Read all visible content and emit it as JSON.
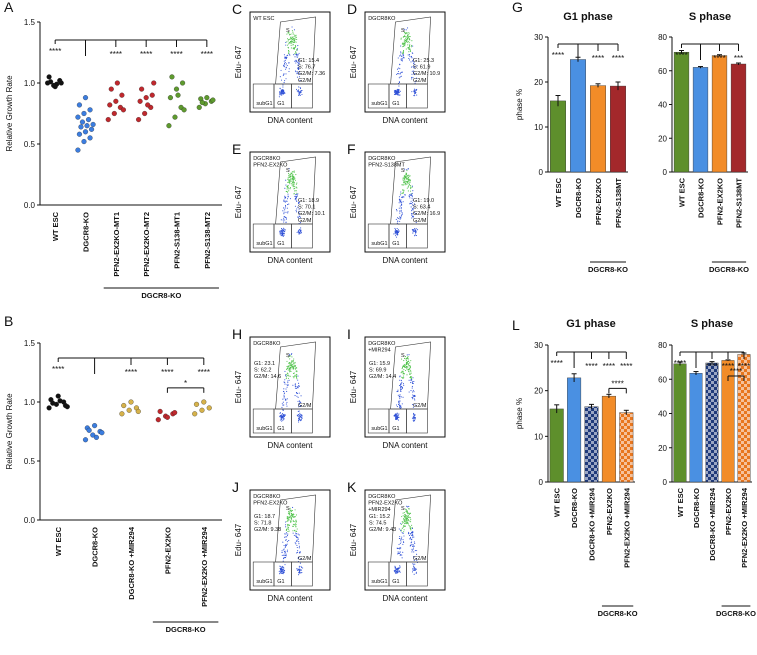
{
  "chart_data": [
    {
      "type": "dot",
      "panel": "A",
      "ylabel": "Relative Growth Rate",
      "categories": [
        "WT ESC",
        "DGCR8-KO",
        "PFN2-EX2KO-MT1",
        "PFN2-EX2KO-MT2",
        "PFN2-S138-MT1",
        "PFN2-S138-MT2"
      ],
      "colors": [
        "#111111",
        "#3b7de0",
        "#c0282d",
        "#c0282d",
        "#5e9a2e",
        "#5e9a2e"
      ],
      "values": [
        [
          1.0,
          0.98,
          1.02,
          1.05,
          0.97,
          1.0,
          1.01,
          0.99
        ],
        [
          0.45,
          0.52,
          0.55,
          0.58,
          0.6,
          0.62,
          0.64,
          0.65,
          0.66,
          0.68,
          0.7,
          0.72,
          0.75,
          0.78,
          0.82,
          0.88
        ],
        [
          0.7,
          0.75,
          0.8,
          0.82,
          0.85,
          0.9,
          0.95,
          1.0,
          0.78
        ],
        [
          0.7,
          0.75,
          0.8,
          0.85,
          0.88,
          0.9,
          0.95,
          0.82,
          1.0
        ],
        [
          0.65,
          0.72,
          0.8,
          0.88,
          0.95,
          1.0,
          1.05,
          0.9,
          0.78
        ],
        [
          0.8,
          0.83,
          0.85,
          0.87,
          0.88,
          0.86,
          0.84
        ]
      ],
      "significance": [
        "****",
        null,
        "****",
        "****",
        "****",
        "****"
      ],
      "group_label": "DGCR8-KO",
      "ylim": [
        0,
        1.5
      ],
      "yticks": [
        {
          "value": 0,
          "label": "0.0"
        },
        0.5,
        {
          "value": 1,
          "label": "1.0"
        },
        1.5
      ]
    },
    {
      "type": "dot",
      "panel": "B",
      "ylabel": "Relative Growth Rate",
      "categories": [
        "WT ESC",
        "DGCR8-KO",
        "DGCR8-KO +MIR294",
        "PFN2-EX2KO",
        "PFN2-EX2KO +MIR294"
      ],
      "colors": [
        "#111111",
        "#3b7de0",
        "#d6b24a",
        "#c0282d",
        "#d6b24a"
      ],
      "values": [
        [
          0.95,
          0.98,
          1.0,
          1.02,
          1.05,
          0.97,
          0.99,
          1.01,
          0.96
        ],
        [
          0.68,
          0.72,
          0.75,
          0.78,
          0.8,
          0.74,
          0.76,
          0.7
        ],
        [
          0.9,
          0.93,
          0.95,
          0.97,
          1.0,
          0.92
        ],
        [
          0.85,
          0.88,
          0.9,
          0.92,
          0.87,
          0.91
        ],
        [
          0.9,
          0.93,
          0.95,
          0.98,
          1.0
        ]
      ],
      "significance": [
        "****",
        null,
        "****",
        "****",
        "****"
      ],
      "annotations": [
        "*"
      ],
      "group_label": "DGCR8-KO",
      "ylim": [
        0,
        1.5
      ],
      "yticks": [
        {
          "value": 0,
          "label": "0.0"
        },
        0.5,
        {
          "value": 1,
          "label": "1.0"
        },
        1.5
      ]
    },
    {
      "type": "bar",
      "panel": "G",
      "title": "G1 phase",
      "ylabel": "phase %",
      "categories": [
        "WT ESC",
        "DGCR8-KO",
        "PFN2-EX2KO",
        "PFN2-S138MT"
      ],
      "colors": [
        "#5e8f2c",
        "#4a90e2",
        "#f28c28",
        "#a3282b"
      ],
      "values": [
        15.8,
        25,
        19.2,
        19.1
      ],
      "errors": [
        1.2,
        0.5,
        0.4,
        0.9
      ],
      "significance": [
        "****",
        null,
        "****",
        "****"
      ],
      "group_label": "DGCR8-KO",
      "ylim": [
        0,
        30
      ],
      "yticks": [
        0,
        10,
        20,
        30
      ]
    },
    {
      "type": "bar",
      "title": "S phase",
      "categories": [
        "WT ESC",
        "DGCR8-KO",
        "PFN2-EX2KO",
        "PFN2-S138MT"
      ],
      "colors": [
        "#5e8f2c",
        "#4a90e2",
        "#f28c28",
        "#a3282b"
      ],
      "values": [
        71,
        62,
        69,
        64
      ],
      "errors": [
        1,
        0.5,
        0.5,
        0.6
      ],
      "significance": [
        "****",
        null,
        "****",
        "***"
      ],
      "group_label": "DGCR8-KO",
      "ylim": [
        0,
        80
      ],
      "yticks": [
        0,
        20,
        40,
        60,
        80
      ]
    },
    {
      "type": "bar",
      "panel": "L",
      "title": "G1 phase",
      "ylabel": "phase %",
      "categories": [
        "WT ESC",
        "DGCR8-KO",
        "DGCR8-KO +MIR294",
        "PFN2-EX2KO",
        "PFN2-EX2KO +MIR294"
      ],
      "colors": [
        "#5e8f2c",
        "#4a90e2",
        "#1f3a7a",
        "#f28c28",
        "#e8761e"
      ],
      "patterns": [
        null,
        null,
        "checker",
        null,
        "checker"
      ],
      "values": [
        16,
        22.8,
        16.5,
        18.8,
        15.2
      ],
      "errors": [
        0.9,
        0.9,
        0.5,
        0.4,
        0.5
      ],
      "significance": [
        "****",
        null,
        "****",
        "****",
        "****"
      ],
      "annotations": [
        "****"
      ],
      "group_label": "DGCR8-KO",
      "ylim": [
        0,
        30
      ],
      "yticks": [
        0,
        10,
        20,
        30
      ]
    },
    {
      "type": "bar",
      "title": "S phase",
      "categories": [
        "WT ESC",
        "DGCR8-KO",
        "DGCR8-KO +MIR294",
        "PFN2-EX2KO",
        "PFN2-EX2KO +MIR294"
      ],
      "colors": [
        "#5e8f2c",
        "#4a90e2",
        "#1f3a7a",
        "#f28c28",
        "#e8761e"
      ],
      "patterns": [
        null,
        null,
        "checker",
        null,
        "checker"
      ],
      "values": [
        69,
        63.5,
        69.5,
        71,
        74.5
      ],
      "errors": [
        1,
        1,
        0.8,
        0.3,
        0.8
      ],
      "significance": [
        "****",
        null,
        "****",
        "****",
        "****"
      ],
      "annotations": [
        "****"
      ],
      "group_label": "DGCR8-KO",
      "ylim": [
        0,
        80
      ],
      "yticks": [
        0,
        20,
        40,
        60,
        80
      ]
    }
  ],
  "flow_axes": {
    "x": "DNA content",
    "y": "Edu- 647",
    "gates": [
      "S",
      "G2/M",
      "G1",
      "subG1"
    ]
  },
  "flow_panels": [
    {
      "letter": "C",
      "sample": [
        "WT ESC"
      ],
      "stats": [
        "G1: 15.4",
        "S: 76.7",
        "G2/M: 7.36"
      ]
    },
    {
      "letter": "D",
      "sample": [
        "DGCR8KO"
      ],
      "stats": [
        "G1: 25.3",
        "S: 61.9",
        "G2/M: 10.9"
      ]
    },
    {
      "letter": "E",
      "sample": [
        "DGCR8KO",
        "PFN2-EX2KO"
      ],
      "stats": [
        "G1: 18.9",
        "S: 70.1",
        "G2/M: 10.1"
      ]
    },
    {
      "letter": "F",
      "sample": [
        "DGCR8KO",
        "PFN2-S138MT"
      ],
      "stats": [
        "G1: 19.0",
        "S: 63.4",
        "G2/M: 16.9"
      ]
    },
    {
      "letter": "H",
      "sample": [
        "DGCR8KO"
      ],
      "stats": [
        "G1: 23.1",
        "S: 62.2",
        "G2/M: 14.6"
      ]
    },
    {
      "letter": "I",
      "sample": [
        "DGCR8KO",
        "+MIR294"
      ],
      "stats": [
        "G1: 15.9",
        "S: 69.9",
        "G2/M: 14.4"
      ]
    },
    {
      "letter": "J",
      "sample": [
        "DGCR8KO",
        "PFN2-EX2KO"
      ],
      "stats": [
        "G1: 18.7",
        "S: 71.8",
        "G2/M: 9.38"
      ]
    },
    {
      "letter": "K",
      "sample": [
        "DGCR8KO",
        "PFN2-EX2KO",
        "+MIR294"
      ],
      "stats": [
        "G1: 15.2",
        "S: 74.5",
        "G2/M: 9.43"
      ]
    }
  ]
}
